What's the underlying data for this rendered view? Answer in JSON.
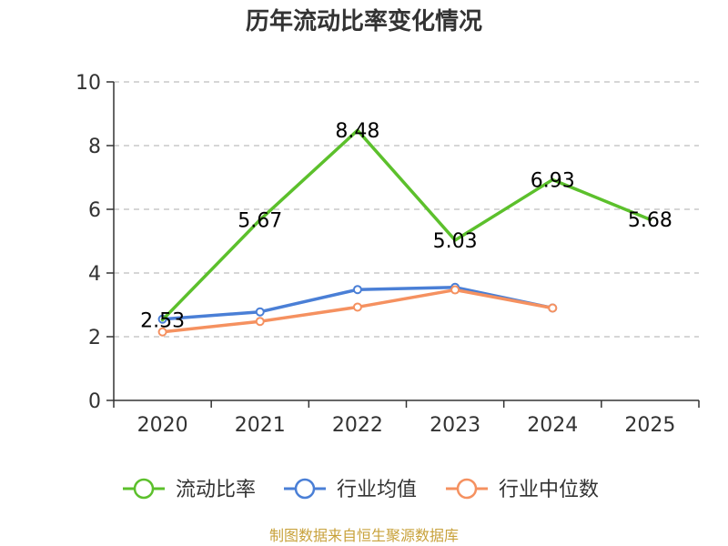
{
  "chart_data": {
    "type": "line",
    "title": "历年流动比率变化情况",
    "categories": [
      "2020",
      "2021",
      "2022",
      "2023",
      "2024",
      "2025"
    ],
    "ylim": [
      0,
      10
    ],
    "yticks": [
      "0",
      "2",
      "4",
      "6",
      "8",
      "10"
    ],
    "grid": true,
    "legend_position": "bottom",
    "series": [
      {
        "name": "流动比率",
        "color": "#5cc02c",
        "values": [
          2.53,
          5.67,
          8.48,
          5.03,
          6.93,
          5.68
        ],
        "labels": [
          "2.53",
          "5.67",
          "8.48",
          "5.03",
          "6.93",
          "5.68"
        ],
        "markers": false
      },
      {
        "name": "行业均值",
        "color": "#4a7fd6",
        "values": [
          2.55,
          2.78,
          3.48,
          3.55,
          2.9,
          null
        ],
        "markers": true
      },
      {
        "name": "行业中位数",
        "color": "#f59160",
        "values": [
          2.15,
          2.48,
          2.93,
          3.47,
          2.9,
          null
        ],
        "markers": true
      }
    ]
  },
  "source": "制图数据来自恒生聚源数据库"
}
